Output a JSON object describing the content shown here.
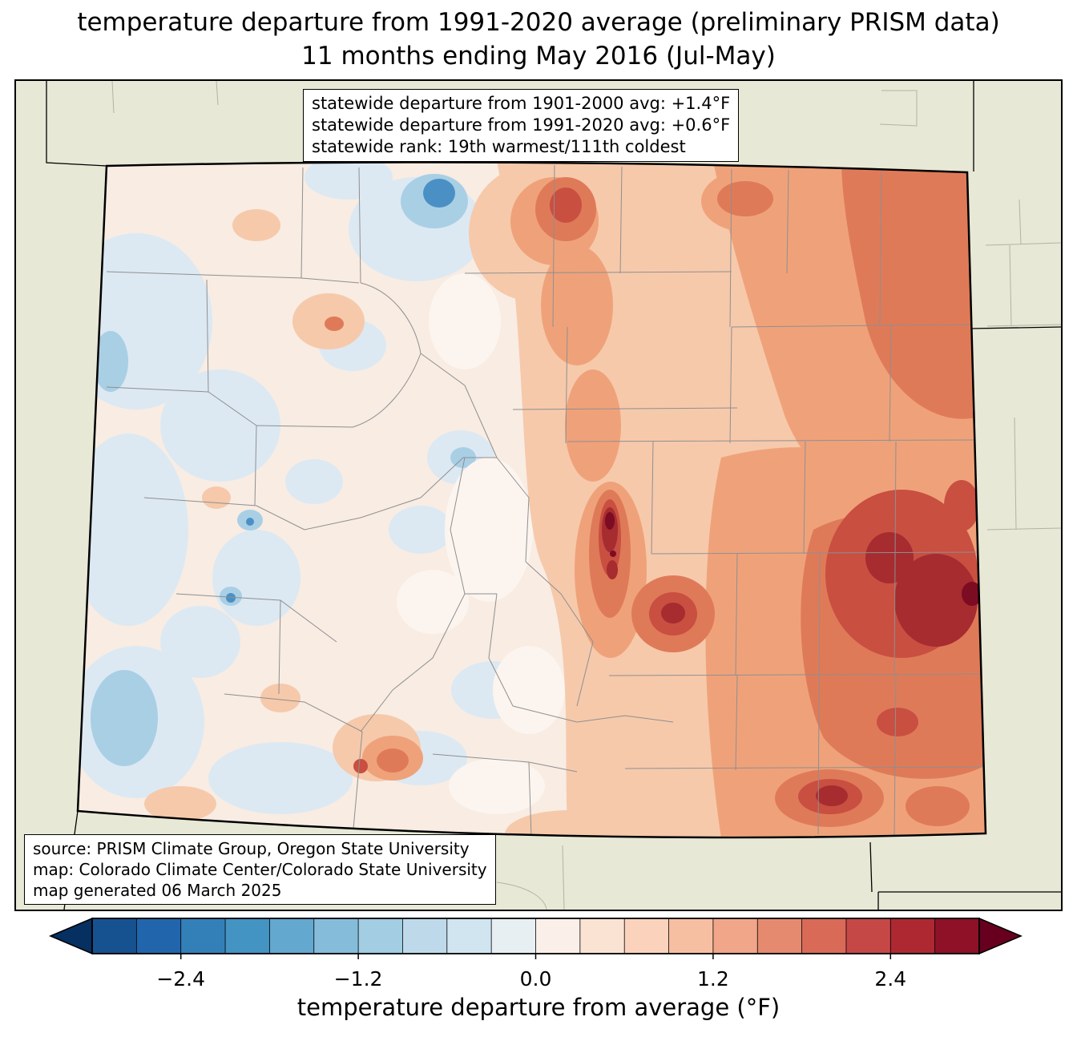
{
  "title": {
    "line1": "temperature departure from 1991-2020 average (preliminary PRISM data)",
    "line2": "11 months ending May 2016 (Jul-May)"
  },
  "stats_box": {
    "lines": [
      "statewide departure from 1901-2000 avg: +1.4°F",
      "statewide departure from 1991-2020 avg: +0.6°F",
      "statewide rank: 19th warmest/111th coldest"
    ]
  },
  "source_box": {
    "lines": [
      "source: PRISM Climate Group, Oregon State University",
      "map: Colorado Climate Center/Colorado State University",
      "map generated 06 March 2025"
    ]
  },
  "colorbar": {
    "label": "temperature departure from average (°F)",
    "min": -3.0,
    "max": 3.0,
    "interval": 0.3,
    "under_color": "#053061",
    "over_color": "#67001f",
    "colors": [
      "#175290",
      "#2166ac",
      "#3380b9",
      "#4393c3",
      "#63a8cf",
      "#85bcda",
      "#a2cde3",
      "#bedaea",
      "#d1e5f0",
      "#e7eff3",
      "#faf0e9",
      "#fbe3d4",
      "#fbd2bc",
      "#f7bfa1",
      "#f1a689",
      "#e68a6f",
      "#d96a57",
      "#c64846",
      "#ae2832",
      "#8f1127"
    ],
    "ticks": [
      {
        "value": -2.4,
        "label": "−2.4"
      },
      {
        "value": -1.2,
        "label": "−1.2"
      },
      {
        "value": 0.0,
        "label": "0.0"
      },
      {
        "value": 1.2,
        "label": "1.2"
      },
      {
        "value": 2.4,
        "label": "2.4"
      }
    ]
  },
  "map": {
    "region": "Colorado",
    "outside_fill": "#e8e8d7",
    "state_border_color": "#000000",
    "county_line_color": "#8f8f8f",
    "anomaly_palette": {
      "strong_cool": "#4b90c4",
      "cool": "#a9cfe5",
      "slight_cool": "#dce9f3",
      "neutral": "#f8ece3",
      "near_white": "#fcf5ef",
      "slight_warm": "#f6c9ab",
      "warm": "#efa27a",
      "warmer": "#df7a58",
      "hot": "#c94f41",
      "very_hot": "#a62c30",
      "extreme": "#7c0c22"
    }
  }
}
